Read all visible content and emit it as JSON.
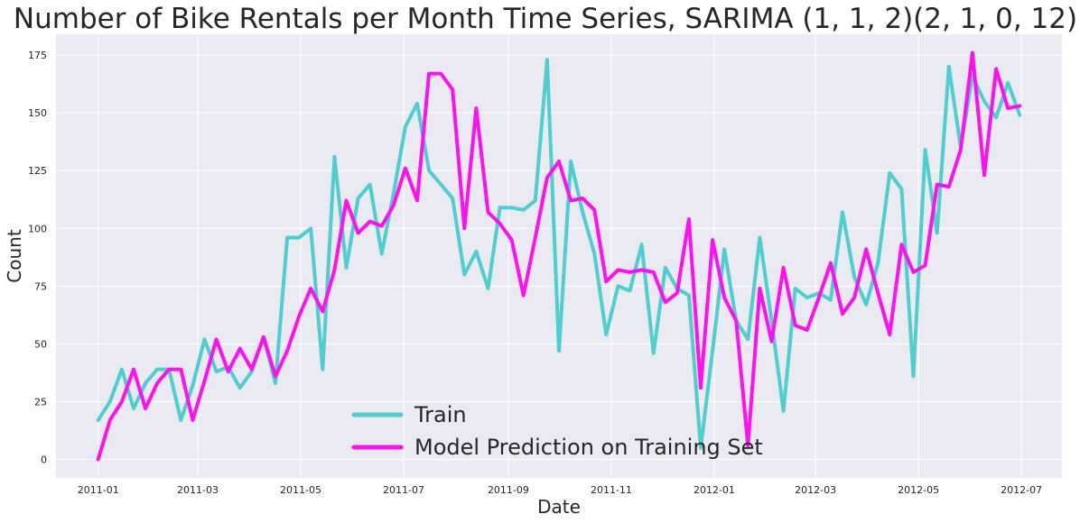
{
  "chart_data": {
    "type": "line",
    "title": "Number of Bike Rentals per Month Time Series, SARIMA (1, 1, 2)(2, 1, 0, 12)",
    "xlabel": "Date",
    "ylabel": "Count",
    "xlim": [
      "2010-12-07",
      "2012-07-25"
    ],
    "ylim": [
      -8,
      184
    ],
    "xticks": [
      "2011-01",
      "2011-03",
      "2011-05",
      "2011-07",
      "2011-09",
      "2011-11",
      "2012-01",
      "2012-03",
      "2012-05",
      "2012-07"
    ],
    "yticks": [
      0,
      25,
      50,
      75,
      100,
      125,
      150,
      175
    ],
    "grid": true,
    "legend_position": "bottom-center",
    "colors": {
      "background": "#eaeaf2",
      "grid": "#ffffff",
      "train": "#4dcfcf",
      "prediction": "#ff10f0"
    },
    "x": [
      "2011-01-01",
      "2011-01-08",
      "2011-01-15",
      "2011-01-22",
      "2011-01-29",
      "2011-02-05",
      "2011-02-12",
      "2011-02-19",
      "2011-02-26",
      "2011-03-05",
      "2011-03-12",
      "2011-03-19",
      "2011-03-26",
      "2011-04-02",
      "2011-04-09",
      "2011-04-16",
      "2011-04-23",
      "2011-04-30",
      "2011-05-07",
      "2011-05-14",
      "2011-05-21",
      "2011-05-28",
      "2011-06-04",
      "2011-06-11",
      "2011-06-18",
      "2011-06-25",
      "2011-07-02",
      "2011-07-09",
      "2011-07-16",
      "2011-07-23",
      "2011-07-30",
      "2011-08-06",
      "2011-08-13",
      "2011-08-20",
      "2011-08-27",
      "2011-09-03",
      "2011-09-10",
      "2011-09-17",
      "2011-09-24",
      "2011-10-01",
      "2011-10-08",
      "2011-10-15",
      "2011-10-22",
      "2011-10-29",
      "2011-11-05",
      "2011-11-12",
      "2011-11-19",
      "2011-11-26",
      "2011-12-03",
      "2011-12-10",
      "2011-12-17",
      "2011-12-24",
      "2011-12-31",
      "2012-01-07",
      "2012-01-14",
      "2012-01-21",
      "2012-01-28",
      "2012-02-04",
      "2012-02-11",
      "2012-02-18",
      "2012-02-25",
      "2012-03-03",
      "2012-03-10",
      "2012-03-17",
      "2012-03-24",
      "2012-03-31",
      "2012-04-07",
      "2012-04-14",
      "2012-04-21",
      "2012-04-28",
      "2012-05-05",
      "2012-05-12",
      "2012-05-19",
      "2012-05-26",
      "2012-06-02",
      "2012-06-09",
      "2012-06-16",
      "2012-06-23",
      "2012-06-30"
    ],
    "series": [
      {
        "name": "Train",
        "values": [
          17,
          25,
          39,
          22,
          33,
          39,
          39,
          17,
          32,
          52,
          38,
          40,
          31,
          38,
          53,
          33,
          96,
          96,
          100,
          39,
          131,
          83,
          113,
          119,
          89,
          115,
          144,
          154,
          125,
          119,
          113,
          80,
          90,
          74,
          109,
          109,
          108,
          112,
          173,
          47,
          129,
          107,
          89,
          54,
          75,
          73,
          93,
          46,
          83,
          74,
          71,
          5,
          47,
          91,
          60,
          52,
          96,
          60,
          21,
          74,
          70,
          72,
          69,
          107,
          79,
          67,
          85,
          124,
          117,
          36,
          134,
          98,
          170,
          135,
          166,
          155,
          148,
          163,
          149
        ]
      },
      {
        "name": "Model Prediction on Training Set",
        "values": [
          0,
          17,
          25,
          39,
          22,
          33,
          39,
          39,
          17,
          34,
          52,
          38,
          48,
          39,
          53,
          36,
          47,
          62,
          74,
          64,
          82,
          112,
          98,
          103,
          101,
          110,
          126,
          112,
          167,
          167,
          160,
          100,
          152,
          107,
          102,
          95,
          71,
          96,
          122,
          129,
          112,
          113,
          108,
          77,
          82,
          81,
          82,
          81,
          68,
          72,
          104,
          31,
          95,
          70,
          60,
          6,
          74,
          51,
          83,
          58,
          56,
          70,
          85,
          63,
          70,
          91,
          72,
          54,
          93,
          81,
          84,
          119,
          118,
          134,
          176,
          123,
          169,
          152,
          153
        ]
      }
    ]
  }
}
